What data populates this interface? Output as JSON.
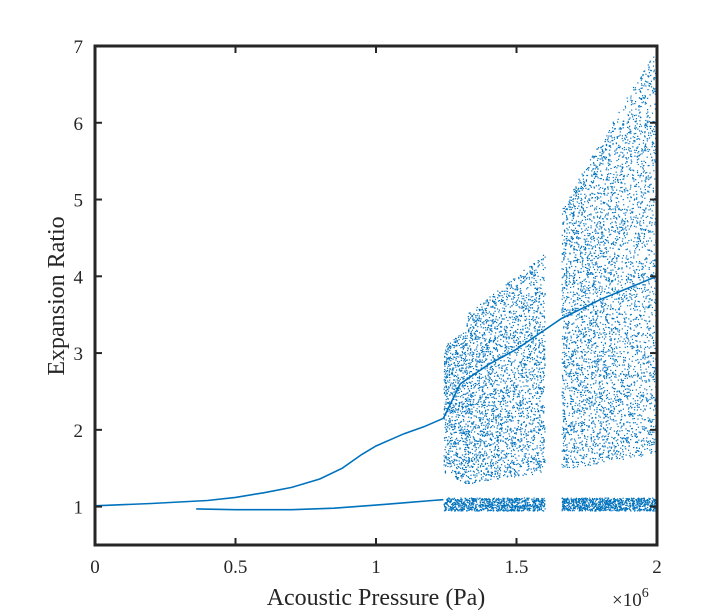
{
  "chart_data": {
    "type": "scatter",
    "title": "",
    "xlabel": "Acoustic Pressure (Pa)",
    "ylabel": "Expansion Ratio",
    "x_multiplier_label": "×10",
    "x_multiplier_exponent": "6",
    "xlim": [
      0,
      2
    ],
    "ylim": [
      0.5,
      7
    ],
    "xticks": [
      0,
      0.5,
      1,
      1.5,
      2
    ],
    "xtick_labels": [
      "0",
      "0.5",
      "1",
      "1.5",
      "2"
    ],
    "yticks": [
      1,
      2,
      3,
      4,
      5,
      6,
      7
    ],
    "ytick_labels": [
      "1",
      "2",
      "3",
      "4",
      "5",
      "6",
      "7"
    ],
    "grid": false,
    "color": "#0072BD",
    "curves": [
      {
        "name": "upper-branch",
        "x": [
          0,
          0.2,
          0.4,
          0.5,
          0.6,
          0.7,
          0.8,
          0.88,
          0.95,
          1.0,
          1.05,
          1.1,
          1.17,
          1.24,
          1.3,
          1.4,
          1.5,
          1.6,
          1.66,
          1.8,
          2.0
        ],
        "y": [
          1.01,
          1.04,
          1.08,
          1.12,
          1.18,
          1.25,
          1.36,
          1.5,
          1.68,
          1.79,
          1.87,
          1.95,
          2.04,
          2.15,
          2.6,
          2.85,
          3.05,
          3.3,
          3.45,
          3.7,
          4.0
        ]
      },
      {
        "name": "lower-branch",
        "x": [
          0.36,
          0.5,
          0.7,
          0.85,
          1.0,
          1.1,
          1.2,
          1.24
        ],
        "y": [
          0.97,
          0.96,
          0.96,
          0.98,
          1.02,
          1.05,
          1.08,
          1.09
        ]
      }
    ],
    "chaotic_regions": [
      {
        "x": [
          1.24,
          1.6
        ],
        "y_low": [
          0.95,
          0.95
        ],
        "y_high": [
          1.12,
          1.12
        ],
        "points": 900
      },
      {
        "x": [
          1.24,
          1.32
        ],
        "y_low": [
          1.45,
          1.3
        ],
        "y_high": [
          3.1,
          3.3
        ],
        "points": 700
      },
      {
        "x": [
          1.32,
          1.6
        ],
        "y_low": [
          1.3,
          1.45
        ],
        "y_high": [
          3.5,
          4.3
        ],
        "points": 2600
      },
      {
        "x": [
          1.66,
          2.0
        ],
        "y_low": [
          0.95,
          0.95
        ],
        "y_high": [
          1.12,
          1.12
        ],
        "points": 900
      },
      {
        "x": [
          1.66,
          2.0
        ],
        "y_low": [
          1.48,
          1.7
        ],
        "y_high": [
          4.9,
          7.0
        ],
        "points": 4200
      }
    ]
  }
}
